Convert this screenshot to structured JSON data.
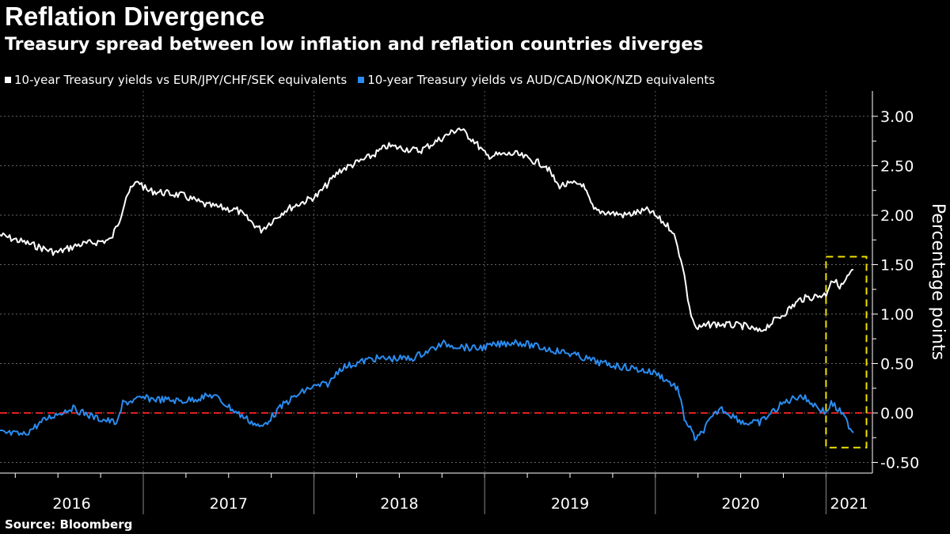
{
  "chart_data": {
    "type": "line",
    "title": "Reflation Divergence",
    "subtitle": "Treasury spread between low inflation and reflation countries diverges",
    "ylabel": "Percentage points",
    "ylim": [
      -0.6,
      3.25
    ],
    "yticks": [
      "3.00",
      "2.50",
      "2.00",
      "1.50",
      "1.00",
      "0.50",
      "0.00",
      "-0.50"
    ],
    "ytick_values": [
      3,
      2.5,
      2,
      1.5,
      1,
      0.5,
      0,
      -0.5
    ],
    "xlim": [
      2016.16,
      2021.2
    ],
    "xticks": [
      "2016",
      "2017",
      "2018",
      "2019",
      "2020",
      "2021"
    ],
    "grid": true,
    "reference_line": 0,
    "highlight_box": {
      "x": [
        2021.0,
        2021.2
      ],
      "y": [
        -0.35,
        1.58
      ]
    },
    "series": [
      {
        "name": "10-year Treasury yields vs EUR/JPY/CHF/SEK equivalents",
        "color": "#ffffff",
        "x": [
          2016.16,
          2016.35,
          2016.49,
          2016.62,
          2016.81,
          2016.86,
          2016.9,
          2016.97,
          2017.02,
          2017.23,
          2017.37,
          2017.55,
          2017.69,
          2017.83,
          2018.02,
          2018.15,
          2018.34,
          2018.43,
          2018.62,
          2018.85,
          2018.94,
          2019.01,
          2019.18,
          2019.36,
          2019.43,
          2019.57,
          2019.64,
          2019.82,
          2019.96,
          2020.1,
          2020.16,
          2020.2,
          2020.24,
          2020.33,
          2020.52,
          2020.61,
          2020.75,
          2020.85,
          2021.0,
          2021.03,
          2021.09,
          2021.16
        ],
        "values": [
          1.8,
          1.7,
          1.62,
          1.7,
          1.75,
          1.95,
          2.2,
          2.35,
          2.25,
          2.2,
          2.1,
          2.05,
          1.85,
          2.05,
          2.2,
          2.45,
          2.6,
          2.7,
          2.65,
          2.88,
          2.75,
          2.6,
          2.62,
          2.5,
          2.3,
          2.32,
          2.05,
          2.0,
          2.05,
          1.85,
          1.5,
          1.05,
          0.85,
          0.9,
          0.88,
          0.82,
          1.0,
          1.15,
          1.2,
          1.35,
          1.28,
          1.45
        ]
      },
      {
        "name": "10-year Treasury yields vs AUD/CAD/NOK/NZD equivalents",
        "color": "#2a8cf0",
        "x": [
          2016.16,
          2016.3,
          2016.44,
          2016.58,
          2016.72,
          2016.85,
          2016.88,
          2017.0,
          2017.23,
          2017.41,
          2017.55,
          2017.69,
          2017.83,
          2017.97,
          2018.09,
          2018.15,
          2018.34,
          2018.57,
          2018.76,
          2018.94,
          2019.18,
          2019.36,
          2019.5,
          2019.69,
          2019.87,
          2020.01,
          2020.13,
          2020.17,
          2020.24,
          2020.31,
          2020.38,
          2020.52,
          2020.61,
          2020.75,
          2020.85,
          2021.0,
          2021.03,
          2021.09,
          2021.16
        ],
        "values": [
          -0.2,
          -0.22,
          -0.05,
          0.05,
          -0.05,
          -0.1,
          0.1,
          0.15,
          0.12,
          0.18,
          0.0,
          -0.15,
          0.1,
          0.25,
          0.3,
          0.45,
          0.55,
          0.55,
          0.7,
          0.65,
          0.72,
          0.65,
          0.6,
          0.5,
          0.45,
          0.4,
          0.25,
          -0.05,
          -0.28,
          -0.1,
          0.05,
          -0.1,
          -0.1,
          0.1,
          0.18,
          0.0,
          0.1,
          0.0,
          -0.2
        ]
      }
    ]
  },
  "source": "Source: Bloomberg"
}
